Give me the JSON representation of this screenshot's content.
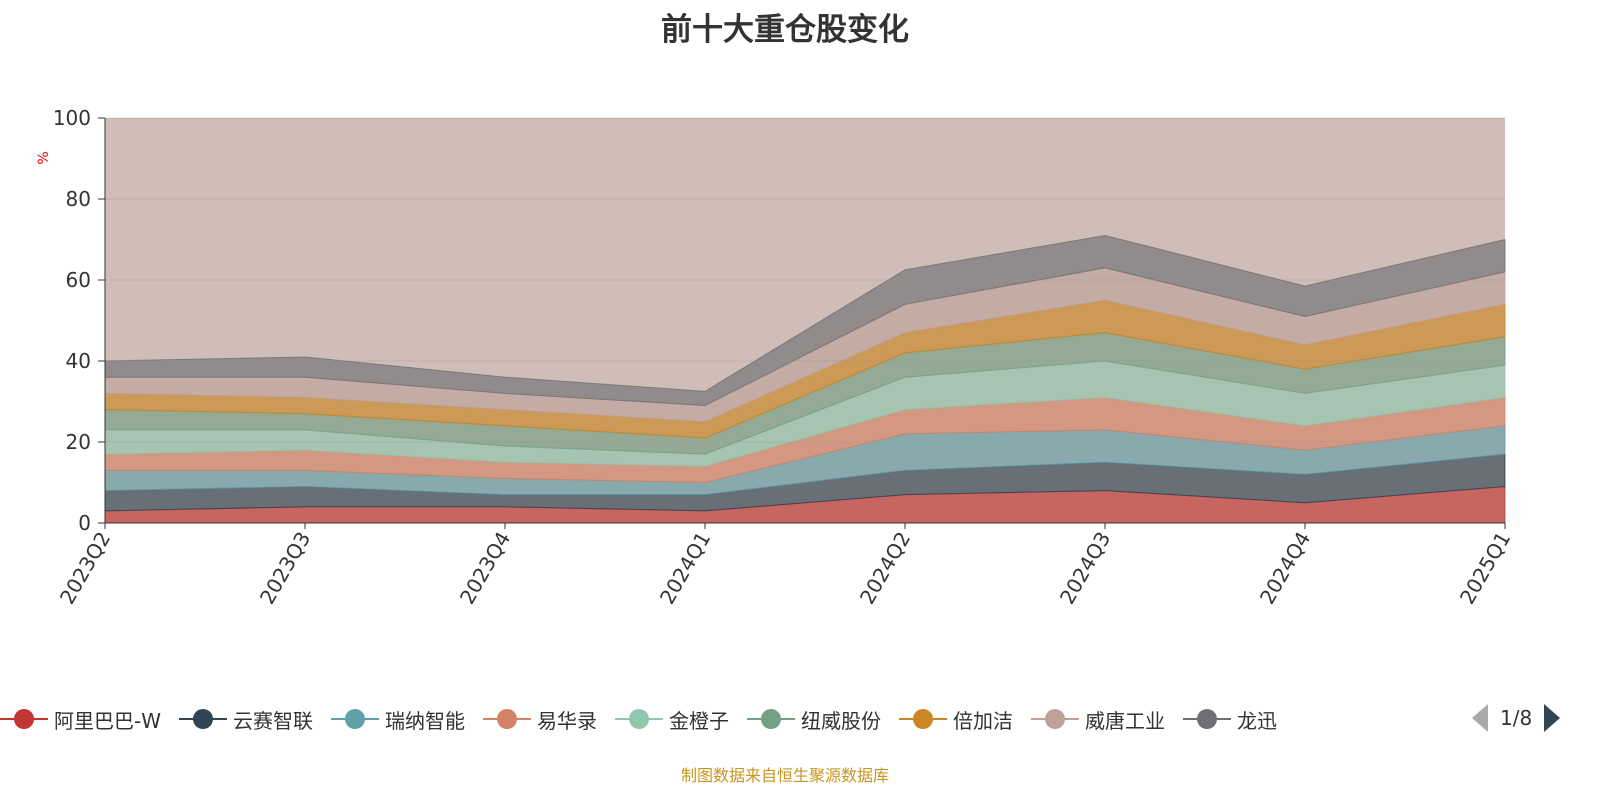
{
  "title": "前十大重仓股变化",
  "footer": "制图数据来自恒生聚源数据库",
  "legend_page": "1/8",
  "chart_data": {
    "type": "area",
    "stacked": true,
    "title": "前十大重仓股变化",
    "xlabel": "",
    "ylabel": "%",
    "ylim": [
      0,
      100
    ],
    "yticks": [
      0,
      20,
      40,
      60,
      80,
      100
    ],
    "categories": [
      "2023Q2",
      "2023Q3",
      "2023Q4",
      "2024Q1",
      "2024Q2",
      "2024Q3",
      "2024Q4",
      "2025Q1"
    ],
    "legend_position": "bottom",
    "remainder_color": "#d1bdb8",
    "series": [
      {
        "name": "阿里巴巴-W",
        "color": "#c23531",
        "values": [
          3,
          4,
          4,
          3,
          7,
          8,
          5,
          9
        ]
      },
      {
        "name": "云赛智联",
        "color": "#2f4554",
        "values": [
          5,
          5,
          3,
          4,
          6,
          7,
          7,
          8
        ]
      },
      {
        "name": "瑞纳智能",
        "color": "#61a0a8",
        "values": [
          5,
          4,
          4,
          3,
          9,
          8,
          6,
          7
        ]
      },
      {
        "name": "易华录",
        "color": "#d48265",
        "values": [
          4,
          5,
          4,
          4,
          6,
          8,
          6,
          7
        ]
      },
      {
        "name": "金橙子",
        "color": "#91c7ae",
        "values": [
          6,
          5,
          4,
          3,
          8,
          9,
          8,
          8
        ]
      },
      {
        "name": "纽威股份",
        "color": "#749f83",
        "values": [
          5,
          4,
          5,
          4,
          6,
          7,
          6,
          7
        ]
      },
      {
        "name": "倍加洁",
        "color": "#ca8622",
        "values": [
          4,
          4,
          4,
          4,
          5,
          8,
          6,
          8
        ]
      },
      {
        "name": "威唐工业",
        "color": "#bda29a",
        "values": [
          4,
          5,
          4,
          4,
          7,
          8,
          7,
          8
        ]
      },
      {
        "name": "龙迅",
        "color": "#6e7074",
        "values": [
          4,
          5,
          4,
          3.5,
          8.5,
          8,
          7.5,
          8
        ]
      }
    ]
  }
}
